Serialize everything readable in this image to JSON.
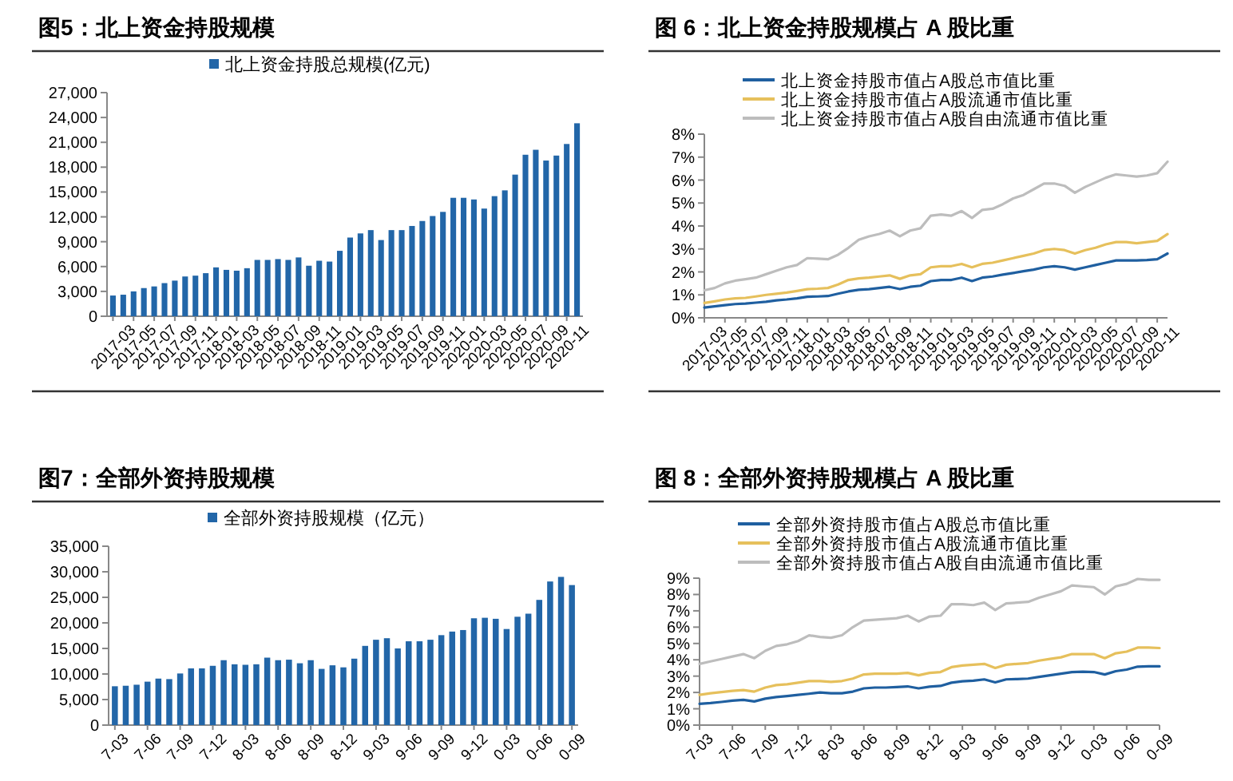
{
  "chart_data": [
    {
      "type": "bar",
      "title": "图5：北上资金持股规模",
      "legend": "top",
      "categories": [
        "2017-03",
        null,
        "2017-05",
        null,
        "2017-07",
        null,
        "2017-09",
        null,
        "2017-11",
        null,
        "2018-01",
        null,
        "2018-03",
        null,
        "2018-05",
        null,
        "2018-07",
        null,
        "2018-09",
        null,
        "2018-11",
        null,
        "2019-01",
        null,
        "2019-03",
        null,
        "2019-05",
        null,
        "2019-07",
        null,
        "2019-09",
        null,
        "2019-11",
        null,
        "2020-01",
        null,
        "2020-03",
        null,
        "2020-05",
        null,
        "2020-07",
        null,
        "2020-09",
        null,
        "2020-11",
        null
      ],
      "series": [
        {
          "name": "北上资金持股总规模(亿元)",
          "color": "#2266a8",
          "values": [
            2500,
            2600,
            3000,
            3400,
            3600,
            4000,
            4300,
            4800,
            4900,
            5200,
            5900,
            5600,
            5500,
            5800,
            6800,
            6800,
            6900,
            6800,
            7100,
            6100,
            6700,
            6600,
            7900,
            9500,
            10000,
            10400,
            9200,
            10400,
            10400,
            10900,
            11500,
            12100,
            12600,
            14300,
            14300,
            14100,
            13000,
            14500,
            15200,
            17100,
            19500,
            20100,
            18800,
            19400,
            20800,
            23300
          ]
        }
      ],
      "ylim": [
        0,
        27000
      ],
      "yticks": [
        {
          "value": 0,
          "label": "0"
        },
        {
          "value": 3000,
          "label": "3,000"
        },
        {
          "value": 6000,
          "label": "6,000"
        },
        {
          "value": 9000,
          "label": "9,000"
        },
        {
          "value": 12000,
          "label": "12,000"
        },
        {
          "value": 15000,
          "label": "15,000"
        },
        {
          "value": 18000,
          "label": "18,000"
        },
        {
          "value": 21000,
          "label": "21,000"
        },
        {
          "value": 24000,
          "label": "24,000"
        },
        {
          "value": 27000,
          "label": "27,000"
        }
      ]
    },
    {
      "type": "line",
      "title": "图 6：北上资金持股规模占 A 股比重",
      "legend": "top left",
      "categories": [
        "2017-03",
        null,
        "2017-05",
        null,
        "2017-07",
        null,
        "2017-09",
        null,
        "2017-11",
        null,
        "2018-01",
        null,
        "2018-03",
        null,
        "2018-05",
        null,
        "2018-07",
        null,
        "2018-09",
        null,
        "2018-11",
        null,
        "2019-01",
        null,
        "2019-03",
        null,
        "2019-05",
        null,
        "2019-07",
        null,
        "2019-09",
        null,
        "2019-11",
        null,
        "2020-01",
        null,
        "2020-03",
        null,
        "2020-05",
        null,
        "2020-07",
        null,
        "2020-09",
        null,
        "2020-11",
        null
      ],
      "series": [
        {
          "name": "北上资金持股市值占A股总市值比重",
          "color": "#1f5fa0",
          "values": [
            0.45,
            0.5,
            0.55,
            0.6,
            0.62,
            0.66,
            0.7,
            0.76,
            0.8,
            0.85,
            0.92,
            0.93,
            0.95,
            1.05,
            1.15,
            1.22,
            1.25,
            1.3,
            1.35,
            1.25,
            1.35,
            1.4,
            1.6,
            1.65,
            1.65,
            1.75,
            1.6,
            1.75,
            1.8,
            1.88,
            1.95,
            2.03,
            2.1,
            2.2,
            2.25,
            2.2,
            2.1,
            2.2,
            2.3,
            2.4,
            2.5,
            2.5,
            2.5,
            2.52,
            2.55,
            2.8
          ]
        },
        {
          "name": " 北上资金持股市值占A股流通市值比重",
          "color": "#e6c05c",
          "values": [
            0.65,
            0.72,
            0.8,
            0.85,
            0.87,
            0.93,
            1.0,
            1.05,
            1.1,
            1.17,
            1.25,
            1.27,
            1.3,
            1.45,
            1.65,
            1.72,
            1.75,
            1.8,
            1.85,
            1.7,
            1.85,
            1.9,
            2.2,
            2.25,
            2.25,
            2.35,
            2.2,
            2.35,
            2.4,
            2.5,
            2.6,
            2.7,
            2.8,
            2.95,
            3.0,
            2.95,
            2.8,
            2.95,
            3.05,
            3.2,
            3.3,
            3.3,
            3.25,
            3.3,
            3.35,
            3.65
          ]
        },
        {
          "name": "北上资金持股市值占A股自由流通市值比重",
          "color": "#bdbdbd",
          "values": [
            1.2,
            1.3,
            1.5,
            1.62,
            1.68,
            1.75,
            1.9,
            2.05,
            2.2,
            2.3,
            2.6,
            2.58,
            2.55,
            2.75,
            3.05,
            3.4,
            3.55,
            3.65,
            3.8,
            3.55,
            3.8,
            3.9,
            4.45,
            4.5,
            4.45,
            4.65,
            4.35,
            4.7,
            4.75,
            4.95,
            5.2,
            5.35,
            5.6,
            5.85,
            5.85,
            5.75,
            5.45,
            5.7,
            5.9,
            6.1,
            6.25,
            6.2,
            6.15,
            6.2,
            6.3,
            6.8
          ]
        }
      ],
      "ylim": [
        0,
        8
      ],
      "yticks": [
        {
          "value": 0,
          "label": "0%"
        },
        {
          "value": 1,
          "label": "1%"
        },
        {
          "value": 2,
          "label": "2%"
        },
        {
          "value": 3,
          "label": "3%"
        },
        {
          "value": 4,
          "label": "4%"
        },
        {
          "value": 5,
          "label": "5%"
        },
        {
          "value": 6,
          "label": "6%"
        },
        {
          "value": 7,
          "label": "7%"
        },
        {
          "value": 8,
          "label": "8%"
        }
      ]
    },
    {
      "type": "bar",
      "title": "图7：全部外资持股规模",
      "legend": "top",
      "categories": [
        "7-03",
        null,
        null,
        "7-06",
        null,
        null,
        "7-09",
        null,
        null,
        "7-12",
        null,
        null,
        "8-03",
        null,
        null,
        "8-06",
        null,
        null,
        "8-09",
        null,
        null,
        "8-12",
        null,
        null,
        "9-03",
        null,
        null,
        "9-06",
        null,
        null,
        "9-09",
        null,
        null,
        "9-12",
        null,
        null,
        "0-03",
        null,
        null,
        "0-06",
        null,
        null,
        "0-09"
      ],
      "series": [
        {
          "name": "全部外资持股规模（亿元）",
          "color": "#2266a8",
          "values": [
            7600,
            7700,
            7900,
            8500,
            9100,
            9000,
            10100,
            11100,
            11100,
            11600,
            12700,
            11900,
            11800,
            11900,
            13200,
            12700,
            12800,
            12100,
            12700,
            11000,
            11700,
            11300,
            13000,
            15500,
            16700,
            17000,
            15000,
            16400,
            16400,
            16700,
            17600,
            18300,
            18600,
            20900,
            21000,
            20800,
            18800,
            21200,
            21800,
            24500,
            28100,
            29000,
            27400
          ]
        }
      ],
      "ylim": [
        0,
        35000
      ],
      "yticks": [
        {
          "value": 0,
          "label": "0"
        },
        {
          "value": 5000,
          "label": "5,000"
        },
        {
          "value": 10000,
          "label": "10,000"
        },
        {
          "value": 15000,
          "label": "15,000"
        },
        {
          "value": 20000,
          "label": "20,000"
        },
        {
          "value": 25000,
          "label": "25,000"
        },
        {
          "value": 30000,
          "label": "30,000"
        },
        {
          "value": 35000,
          "label": "35,000"
        }
      ]
    },
    {
      "type": "line",
      "title": "图 8：全部外资持股规模占 A 股比重",
      "legend": "top left",
      "categories": [
        "7-03",
        null,
        null,
        "7-06",
        null,
        null,
        "7-09",
        null,
        null,
        "7-12",
        null,
        null,
        "8-03",
        null,
        null,
        "8-06",
        null,
        null,
        "8-09",
        null,
        null,
        "8-12",
        null,
        null,
        "9-03",
        null,
        null,
        "9-06",
        null,
        null,
        "9-09",
        null,
        null,
        "9-12",
        null,
        null,
        "0-03",
        null,
        null,
        "0-06",
        null,
        null,
        "0-09"
      ],
      "series": [
        {
          "name": "全部外资持股市值占A股总市值比重",
          "color": "#1f5fa0",
          "values": [
            1.3,
            1.35,
            1.42,
            1.5,
            1.55,
            1.45,
            1.62,
            1.72,
            1.78,
            1.85,
            1.92,
            2.0,
            1.95,
            1.95,
            2.05,
            2.25,
            2.3,
            2.3,
            2.33,
            2.37,
            2.25,
            2.35,
            2.4,
            2.6,
            2.68,
            2.72,
            2.8,
            2.62,
            2.8,
            2.82,
            2.85,
            2.95,
            3.05,
            3.15,
            3.25,
            3.27,
            3.25,
            3.1,
            3.3,
            3.4,
            3.58,
            3.6,
            3.6
          ]
        },
        {
          "name": "全部外资持股市值占A股流通市值比重",
          "color": "#e6c05c",
          "values": [
            1.85,
            1.95,
            2.02,
            2.1,
            2.15,
            2.05,
            2.3,
            2.45,
            2.5,
            2.6,
            2.7,
            2.7,
            2.65,
            2.7,
            2.85,
            3.1,
            3.15,
            3.15,
            3.15,
            3.2,
            3.05,
            3.2,
            3.25,
            3.55,
            3.65,
            3.7,
            3.75,
            3.5,
            3.7,
            3.75,
            3.8,
            3.95,
            4.05,
            4.15,
            4.35,
            4.35,
            4.35,
            4.1,
            4.4,
            4.5,
            4.75,
            4.75,
            4.72
          ]
        },
        {
          "name": "全部外资持股市值占A股自由流通市值比重",
          "color": "#bdbdbd",
          "values": [
            3.75,
            3.9,
            4.05,
            4.2,
            4.35,
            4.1,
            4.55,
            4.85,
            4.95,
            5.15,
            5.5,
            5.4,
            5.35,
            5.5,
            6.0,
            6.4,
            6.45,
            6.5,
            6.55,
            6.7,
            6.35,
            6.65,
            6.7,
            7.4,
            7.4,
            7.35,
            7.5,
            7.05,
            7.45,
            7.5,
            7.55,
            7.8,
            8.0,
            8.2,
            8.55,
            8.5,
            8.45,
            8.0,
            8.5,
            8.65,
            8.95,
            8.9,
            8.9
          ]
        }
      ],
      "ylim": [
        0,
        9
      ],
      "yticks": [
        {
          "value": 0,
          "label": "0%"
        },
        {
          "value": 1,
          "label": "1%"
        },
        {
          "value": 2,
          "label": "2%"
        },
        {
          "value": 3,
          "label": "3%"
        },
        {
          "value": 4,
          "label": "4%"
        },
        {
          "value": 5,
          "label": "5%"
        },
        {
          "value": 6,
          "label": "6%"
        },
        {
          "value": 7,
          "label": "7%"
        },
        {
          "value": 8,
          "label": "8%"
        },
        {
          "value": 9,
          "label": "9%"
        }
      ]
    }
  ]
}
